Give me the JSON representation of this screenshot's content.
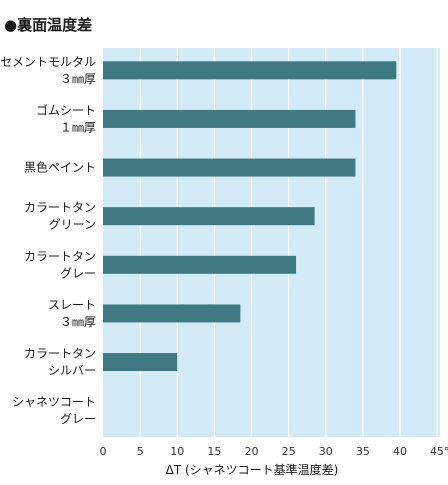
{
  "chart_data": {
    "type": "bar",
    "orientation": "horizontal",
    "title": "●裏面温度差",
    "xlabel": "ΔT (シャネツコート基準温度差)",
    "xlim": [
      0,
      45
    ],
    "xticks": [
      "0",
      "5",
      "10",
      "15",
      "20",
      "25",
      "30",
      "35",
      "40",
      "45℃"
    ],
    "categories": [
      [
        "セメントモルタル",
        "３㎜厚"
      ],
      [
        "ゴムシート",
        "１㎜厚"
      ],
      [
        "黒色ペイント"
      ],
      [
        "カラートタン",
        "グリーン"
      ],
      [
        "カラートタン",
        "グレー"
      ],
      [
        "スレート",
        "３㎜厚"
      ],
      [
        "カラートタン",
        "シルバー"
      ],
      [
        "シャネツコート",
        "グレー"
      ]
    ],
    "values": [
      39.5,
      34,
      34,
      28.5,
      26,
      18.5,
      10,
      0
    ],
    "colors": {
      "bar": "#3f7a82",
      "plot_background": "#d3ebf7",
      "gridline": "#ffffff"
    },
    "grid": true
  }
}
